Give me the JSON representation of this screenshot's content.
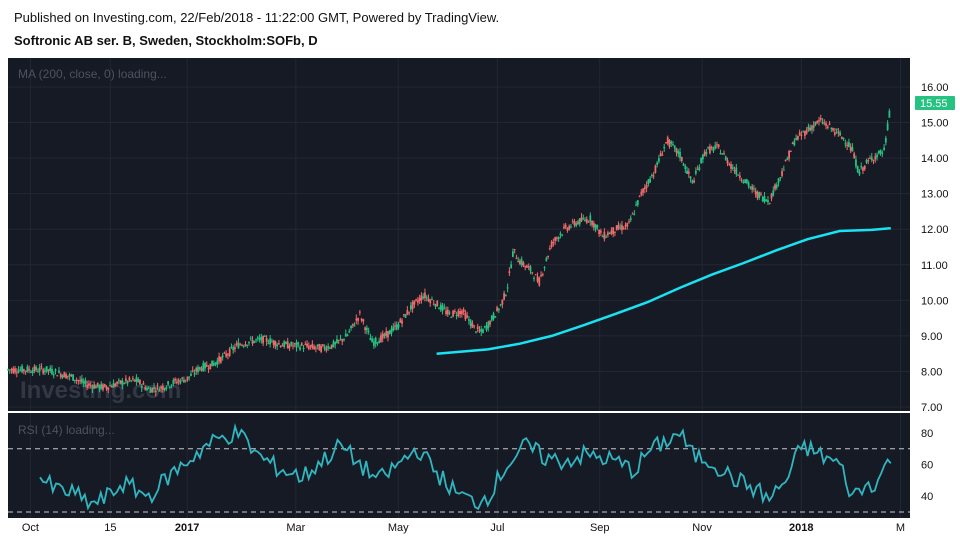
{
  "header": {
    "published": "Published on Investing.com, 22/Feb/2018 - 11:22:00 GMT, Powered by TradingView.",
    "instrument": "Softronic AB ser. B, Sweden, Stockholm:SOFb, D"
  },
  "colors": {
    "background": "#161a25",
    "up": "#26c281",
    "down": "#f06a6a",
    "ma": "#19e2f2",
    "rsi": "#31b6c0",
    "badge": "#26c281"
  },
  "chart_data": [
    {
      "type": "candlestick",
      "title": "",
      "indicator_label": "MA (200, close, 0) loading...",
      "watermark": "Investing.com",
      "ylim": [
        7.0,
        16.0
      ],
      "yticks": [
        "7.00",
        "8.00",
        "9.00",
        "10.00",
        "11.00",
        "12.00",
        "13.00",
        "14.00",
        "15.00",
        "16.00"
      ],
      "last_price": "15.55",
      "grid": true,
      "price_path": [
        [
          0,
          8.05
        ],
        [
          12,
          8.05
        ],
        [
          20,
          7.85
        ],
        [
          24,
          7.65
        ],
        [
          30,
          7.55
        ],
        [
          36,
          7.7
        ],
        [
          40,
          7.75
        ],
        [
          44,
          7.5
        ],
        [
          48,
          7.55
        ],
        [
          52,
          7.7
        ],
        [
          56,
          7.8
        ],
        [
          60,
          8.1
        ],
        [
          64,
          8.2
        ],
        [
          68,
          8.45
        ],
        [
          72,
          8.75
        ],
        [
          76,
          8.85
        ],
        [
          80,
          8.9
        ],
        [
          86,
          8.75
        ],
        [
          94,
          8.7
        ],
        [
          98,
          8.65
        ],
        [
          102,
          8.75
        ],
        [
          106,
          9.0
        ],
        [
          110,
          9.6
        ],
        [
          114,
          8.8
        ],
        [
          118,
          9.0
        ],
        [
          122,
          9.3
        ],
        [
          126,
          9.8
        ],
        [
          130,
          10.15
        ],
        [
          134,
          9.9
        ],
        [
          138,
          9.6
        ],
        [
          142,
          9.7
        ],
        [
          146,
          9.2
        ],
        [
          148,
          9.1
        ],
        [
          150,
          9.3
        ],
        [
          154,
          9.85
        ],
        [
          156,
          10.3
        ],
        [
          158,
          11.4
        ],
        [
          160,
          11.1
        ],
        [
          164,
          10.8
        ],
        [
          166,
          10.5
        ],
        [
          170,
          11.6
        ],
        [
          174,
          12.0
        ],
        [
          178,
          12.2
        ],
        [
          182,
          12.3
        ],
        [
          186,
          11.8
        ],
        [
          190,
          12.0
        ],
        [
          194,
          12.1
        ],
        [
          198,
          13.0
        ],
        [
          202,
          13.6
        ],
        [
          206,
          14.5
        ],
        [
          210,
          14.1
        ],
        [
          214,
          13.3
        ],
        [
          218,
          14.2
        ],
        [
          222,
          14.3
        ],
        [
          226,
          13.8
        ],
        [
          230,
          13.4
        ],
        [
          234,
          13.0
        ],
        [
          238,
          12.8
        ],
        [
          242,
          13.6
        ],
        [
          246,
          14.5
        ],
        [
          250,
          14.8
        ],
        [
          254,
          15.05
        ],
        [
          258,
          14.8
        ],
        [
          262,
          14.5
        ],
        [
          264,
          14.2
        ],
        [
          266,
          13.6
        ],
        [
          270,
          14.0
        ],
        [
          274,
          14.2
        ],
        [
          276,
          15.55
        ]
      ],
      "series": [
        {
          "name": "MA (200, close, 0)",
          "x": [
            134,
            150,
            160,
            170,
            180,
            190,
            200,
            210,
            220,
            230,
            240,
            250,
            260,
            270,
            276
          ],
          "y": [
            8.5,
            8.62,
            8.78,
            9.0,
            9.3,
            9.62,
            9.95,
            10.35,
            10.72,
            11.05,
            11.4,
            11.72,
            11.95,
            11.98,
            12.03
          ]
        }
      ]
    },
    {
      "type": "line",
      "title": "",
      "indicator_label": "RSI (14) loading...",
      "ylim": [
        30,
        85
      ],
      "yticks": [
        "40",
        "60",
        "80"
      ],
      "levels": [
        30,
        70
      ],
      "rsi_path": [
        [
          10,
          52
        ],
        [
          14,
          45
        ],
        [
          20,
          42
        ],
        [
          26,
          35
        ],
        [
          30,
          38
        ],
        [
          36,
          48
        ],
        [
          44,
          40
        ],
        [
          50,
          52
        ],
        [
          56,
          62
        ],
        [
          62,
          72
        ],
        [
          68,
          78
        ],
        [
          72,
          80
        ],
        [
          78,
          66
        ],
        [
          84,
          58
        ],
        [
          92,
          52
        ],
        [
          98,
          62
        ],
        [
          104,
          72
        ],
        [
          110,
          60
        ],
        [
          116,
          50
        ],
        [
          122,
          60
        ],
        [
          128,
          70
        ],
        [
          134,
          55
        ],
        [
          140,
          42
        ],
        [
          146,
          36
        ],
        [
          150,
          40
        ],
        [
          156,
          60
        ],
        [
          162,
          72
        ],
        [
          168,
          64
        ],
        [
          174,
          62
        ],
        [
          180,
          66
        ],
        [
          186,
          64
        ],
        [
          190,
          62
        ],
        [
          196,
          56
        ],
        [
          200,
          68
        ],
        [
          206,
          75
        ],
        [
          210,
          80
        ],
        [
          214,
          66
        ],
        [
          220,
          62
        ],
        [
          226,
          52
        ],
        [
          234,
          44
        ],
        [
          238,
          38
        ],
        [
          244,
          52
        ],
        [
          248,
          72
        ],
        [
          254,
          66
        ],
        [
          260,
          60
        ],
        [
          264,
          40
        ],
        [
          268,
          46
        ],
        [
          272,
          50
        ],
        [
          276,
          65
        ]
      ]
    }
  ],
  "x_axis": {
    "labels": [
      {
        "text": "Oct",
        "t": 7
      },
      {
        "text": "15",
        "t": 32
      },
      {
        "text": "2017",
        "t": 56
      },
      {
        "text": "Mar",
        "t": 90
      },
      {
        "text": "May",
        "t": 122
      },
      {
        "text": "Jul",
        "t": 153
      },
      {
        "text": "Sep",
        "t": 185
      },
      {
        "text": "Nov",
        "t": 217
      },
      {
        "text": "2018",
        "t": 248
      },
      {
        "text": "M",
        "t": 279
      }
    ],
    "bold": [
      "2017",
      "2018"
    ],
    "t_range": [
      0,
      282
    ]
  }
}
